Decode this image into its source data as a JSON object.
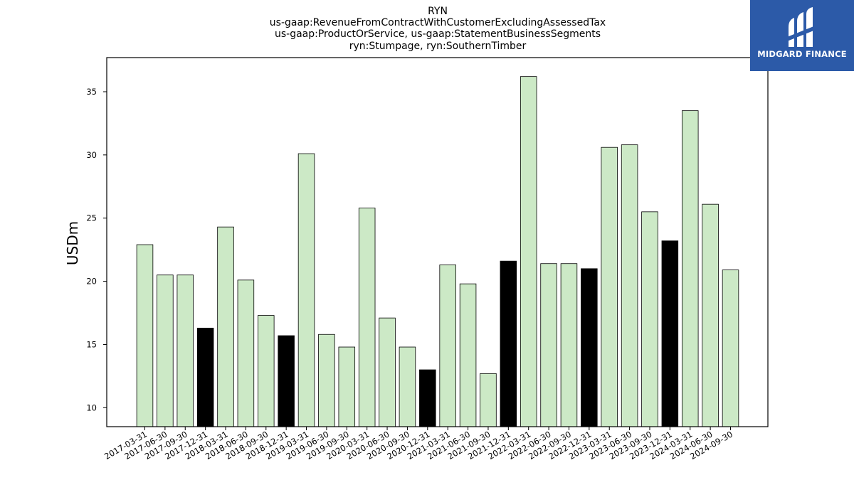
{
  "brand": {
    "name": "MIDGARD FINANCE",
    "background_color": "#2c5aa8",
    "text_color": "#ffffff"
  },
  "colors": {
    "bar_normal": "#cce9c6",
    "bar_highlight": "#000000",
    "bar_edge": "#000000"
  },
  "chart_data": {
    "type": "bar",
    "title_lines": [
      "RYN",
      "us-gaap:RevenueFromContractWithCustomerExcludingAssessedTax",
      "us-gaap:ProductOrService, us-gaap:StatementBusinessSegments",
      "ryn:Stumpage, ryn:SouthernTimber"
    ],
    "xlabel": "",
    "ylabel": "USDm",
    "ylim": [
      8.5,
      37.7
    ],
    "yticks": [
      10,
      15,
      20,
      25,
      30,
      35
    ],
    "grid": false,
    "legend": "none",
    "highlight_rule": "bars for periods ending 12-31 are drawn black",
    "categories": [
      "2017-03-31",
      "2017-06-30",
      "2017-09-30",
      "2017-12-31",
      "2018-03-31",
      "2018-06-30",
      "2018-09-30",
      "2018-12-31",
      "2019-03-31",
      "2019-06-30",
      "2019-09-30",
      "2020-03-31",
      "2020-06-30",
      "2020-09-30",
      "2020-12-31",
      "2021-03-31",
      "2021-06-30",
      "2021-09-30",
      "2021-12-31",
      "2022-03-31",
      "2022-06-30",
      "2022-09-30",
      "2022-12-31",
      "2023-03-31",
      "2023-06-30",
      "2023-09-30",
      "2023-12-31",
      "2024-03-31",
      "2024-06-30",
      "2024-09-30"
    ],
    "values": [
      22.9,
      20.5,
      20.5,
      16.3,
      24.3,
      20.1,
      17.3,
      15.7,
      30.1,
      15.8,
      14.8,
      25.8,
      17.1,
      14.8,
      13.0,
      21.3,
      19.8,
      12.7,
      21.6,
      36.2,
      21.4,
      21.4,
      21.0,
      30.6,
      30.8,
      25.5,
      23.2,
      33.5,
      26.1,
      20.9
    ],
    "highlight": [
      false,
      false,
      false,
      true,
      false,
      false,
      false,
      true,
      false,
      false,
      false,
      false,
      false,
      false,
      true,
      false,
      false,
      false,
      true,
      false,
      false,
      false,
      true,
      false,
      false,
      false,
      true,
      false,
      false,
      false
    ]
  }
}
